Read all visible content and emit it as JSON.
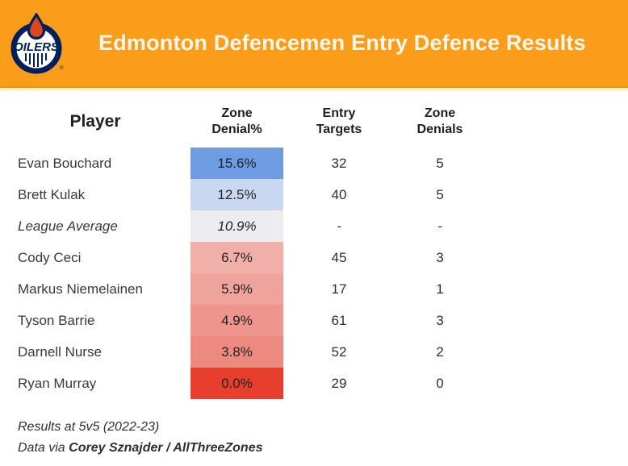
{
  "header": {
    "title": "Edmonton Defencemen Entry Defence Results",
    "logo": {
      "team": "Edmonton Oilers",
      "wordmark": "OILERS",
      "registered_mark": "®"
    },
    "colors": {
      "banner_background": "#FA9D1B",
      "banner_edge_dark": "#E8930C",
      "banner_edge_light": "#FDF3D2",
      "title_text": "#FCF7EC",
      "logo_navy": "#00205B",
      "logo_drop_orange": "#D9481F"
    }
  },
  "table": {
    "columns": [
      {
        "key": "player",
        "label": "Player"
      },
      {
        "key": "zone_denial_pct",
        "label": "Zone Denial%"
      },
      {
        "key": "entry_targets",
        "label": "Entry Targets"
      },
      {
        "key": "zone_denials",
        "label": "Zone Denials"
      }
    ],
    "rows": [
      {
        "player": "Evan Bouchard",
        "zone_denial_pct": "15.6%",
        "entry_targets": "32",
        "zone_denials": "5",
        "cell_color": "#6D9CE3",
        "italic": false
      },
      {
        "player": "Brett Kulak",
        "zone_denial_pct": "12.5%",
        "entry_targets": "40",
        "zone_denials": "5",
        "cell_color": "#C9D7F0",
        "italic": false
      },
      {
        "player": "League Average",
        "zone_denial_pct": "10.9%",
        "entry_targets": "-",
        "zone_denials": "-",
        "cell_color": "#EDEDEF",
        "italic": true
      },
      {
        "player": "Cody Ceci",
        "zone_denial_pct": "6.7%",
        "entry_targets": "45",
        "zone_denials": "3",
        "cell_color": "#F0AFA9",
        "italic": false
      },
      {
        "player": "Markus Niemelainen",
        "zone_denial_pct": "5.9%",
        "entry_targets": "17",
        "zone_denials": "1",
        "cell_color": "#EFA39D",
        "italic": false
      },
      {
        "player": "Tyson Barrie",
        "zone_denial_pct": "4.9%",
        "entry_targets": "61",
        "zone_denials": "3",
        "cell_color": "#EE958D",
        "italic": false
      },
      {
        "player": "Darnell Nurse",
        "zone_denial_pct": "3.8%",
        "entry_targets": "52",
        "zone_denials": "2",
        "cell_color": "#ED8A80",
        "italic": false
      },
      {
        "player": "Ryan Murray",
        "zone_denial_pct": "0.0%",
        "entry_targets": "29",
        "zone_denials": "0",
        "cell_color": "#E73E2E",
        "italic": false
      }
    ]
  },
  "footer": {
    "line1": "Results at 5v5 (2022-23)",
    "line2_prefix": "Data via ",
    "line2_bold": "Corey Sznajder / AllThreeZones"
  },
  "chart_data": {
    "type": "table",
    "title": "Edmonton Defencemen Entry Defence Results",
    "columns": [
      "Player",
      "Zone Denial%",
      "Entry Targets",
      "Zone Denials"
    ],
    "rows": [
      [
        "Evan Bouchard",
        15.6,
        32,
        5
      ],
      [
        "Brett Kulak",
        12.5,
        40,
        5
      ],
      [
        "League Average",
        10.9,
        null,
        null
      ],
      [
        "Cody Ceci",
        6.7,
        45,
        3
      ],
      [
        "Markus Niemelainen",
        5.9,
        17,
        1
      ],
      [
        "Tyson Barrie",
        4.9,
        61,
        3
      ],
      [
        "Darnell Nurse",
        3.8,
        52,
        2
      ],
      [
        "Ryan Murray",
        0.0,
        29,
        0
      ]
    ],
    "heatmap_column": "Zone Denial%",
    "heatmap_scale": "blue (high) to red (low), gray at league average",
    "notes": [
      "Results at 5v5 (2022-23)",
      "Data via Corey Sznajder / AllThreeZones"
    ]
  }
}
